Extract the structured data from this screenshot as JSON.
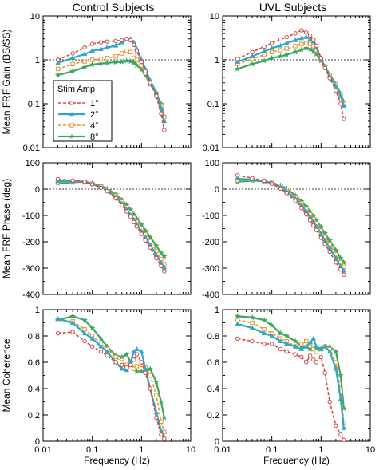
{
  "columns": [
    "Control Subjects",
    "UVL Subjects"
  ],
  "legend": {
    "title": "Stim Amp",
    "entries": [
      "1°",
      "2°",
      "4°",
      "8°"
    ]
  },
  "series_styles": [
    {
      "color": "#d24a43",
      "dash": "dashed",
      "marker": "circle"
    },
    {
      "color": "#2fa8c8",
      "dash": "solid",
      "marker": "triangle"
    },
    {
      "color": "#e8962e",
      "dash": "dashed",
      "marker": "square"
    },
    {
      "color": "#3aa860",
      "dash": "solid",
      "marker": "star"
    }
  ],
  "chart_data": [
    {
      "type": "line",
      "panel": "gain-control",
      "title": "Control Subjects",
      "xlabel": "",
      "ylabel": "Mean FRF Gain (BS/SS)",
      "xscale": "log",
      "yscale": "log",
      "xlim": [
        0.01,
        10
      ],
      "ylim": [
        0.01,
        10
      ],
      "xticks": [
        0.01,
        0.1,
        1,
        10
      ],
      "xtick_labels": [
        "",
        "",
        "",
        ""
      ],
      "yticks": [
        0.01,
        0.1,
        1,
        10
      ],
      "ytick_labels": [
        "0.01",
        "0.1",
        "1",
        "10"
      ],
      "reference_line": 1,
      "x": [
        0.02,
        0.04,
        0.07,
        0.1,
        0.15,
        0.2,
        0.3,
        0.4,
        0.5,
        0.6,
        0.7,
        0.8,
        1.0,
        1.2,
        1.5,
        2.0,
        2.5,
        2.9
      ],
      "series": [
        {
          "name": "1°",
          "values": [
            1.0,
            1.4,
            1.9,
            2.3,
            2.5,
            2.6,
            2.7,
            2.8,
            3.0,
            2.8,
            2.2,
            1.6,
            0.9,
            0.55,
            0.3,
            0.15,
            0.06,
            0.025
          ]
        },
        {
          "name": "2°",
          "values": [
            0.85,
            1.1,
            1.35,
            1.6,
            1.75,
            1.9,
            2.1,
            2.5,
            2.9,
            3.0,
            2.5,
            1.8,
            1.0,
            0.62,
            0.34,
            0.18,
            0.08,
            0.04
          ]
        },
        {
          "name": "4°",
          "values": [
            0.62,
            0.8,
            0.92,
            1.0,
            1.05,
            1.1,
            1.2,
            1.4,
            1.6,
            1.5,
            1.3,
            1.0,
            0.75,
            0.5,
            0.3,
            0.17,
            0.09,
            0.05
          ]
        },
        {
          "name": "8°",
          "values": [
            0.45,
            0.55,
            0.68,
            0.78,
            0.82,
            0.85,
            0.88,
            0.9,
            0.95,
            0.92,
            0.85,
            0.75,
            0.6,
            0.45,
            0.28,
            0.17,
            0.1,
            0.05
          ]
        }
      ]
    },
    {
      "type": "line",
      "panel": "gain-uvl",
      "title": "UVL Subjects",
      "xlabel": "",
      "ylabel": "",
      "xscale": "log",
      "yscale": "log",
      "xlim": [
        0.01,
        10
      ],
      "ylim": [
        0.01,
        10
      ],
      "xticks": [
        0.01,
        0.1,
        1,
        10
      ],
      "xtick_labels": [
        "",
        "",
        "",
        ""
      ],
      "yticks": [
        0.01,
        0.1,
        1,
        10
      ],
      "ytick_labels": [
        "0.01",
        "0.1",
        "1",
        "10"
      ],
      "reference_line": 1,
      "x": [
        0.02,
        0.04,
        0.07,
        0.1,
        0.15,
        0.2,
        0.3,
        0.4,
        0.5,
        0.6,
        0.7,
        0.8,
        1.0,
        1.2,
        1.5,
        2.0,
        2.5,
        2.9
      ],
      "series": [
        {
          "name": "1°",
          "values": [
            1.05,
            1.5,
            2.0,
            2.4,
            2.9,
            3.3,
            4.0,
            4.7,
            4.2,
            3.6,
            2.9,
            2.1,
            1.1,
            0.65,
            0.38,
            0.2,
            0.1,
            0.045
          ]
        },
        {
          "name": "2°",
          "values": [
            0.9,
            1.2,
            1.55,
            1.85,
            2.1,
            2.4,
            2.8,
            3.1,
            3.3,
            3.0,
            2.6,
            1.9,
            1.05,
            0.68,
            0.42,
            0.25,
            0.15,
            0.09
          ]
        },
        {
          "name": "4°",
          "values": [
            0.8,
            1.05,
            1.3,
            1.5,
            1.65,
            1.8,
            2.05,
            2.3,
            2.4,
            2.3,
            2.05,
            1.65,
            1.0,
            0.7,
            0.45,
            0.27,
            0.16,
            0.1
          ]
        },
        {
          "name": "8°",
          "values": [
            0.62,
            0.8,
            0.95,
            1.1,
            1.2,
            1.3,
            1.5,
            1.7,
            1.85,
            1.75,
            1.55,
            1.35,
            0.95,
            0.7,
            0.46,
            0.28,
            0.17,
            0.11
          ]
        }
      ]
    },
    {
      "type": "line",
      "panel": "phase-control",
      "xlabel": "",
      "ylabel": "Mean FRF Phase (deg)",
      "xscale": "log",
      "yscale": "linear",
      "xlim": [
        0.01,
        10
      ],
      "ylim": [
        -400,
        100
      ],
      "xticks": [
        0.01,
        0.1,
        1,
        10
      ],
      "xtick_labels": [
        "",
        "",
        "",
        ""
      ],
      "yticks": [
        -400,
        -300,
        -200,
        -100,
        0,
        100
      ],
      "ytick_labels": [
        "-400",
        "-300",
        "-200",
        "-100",
        "0",
        "100"
      ],
      "reference_line": 0,
      "x": [
        0.02,
        0.04,
        0.07,
        0.1,
        0.15,
        0.2,
        0.3,
        0.4,
        0.5,
        0.6,
        0.7,
        0.8,
        1.0,
        1.2,
        1.5,
        2.0,
        2.5,
        2.9
      ],
      "series": [
        {
          "name": "1°",
          "values": [
            38,
            33,
            28,
            18,
            5,
            -8,
            -35,
            -62,
            -85,
            -105,
            -125,
            -142,
            -170,
            -195,
            -222,
            -262,
            -292,
            -312
          ]
        },
        {
          "name": "2°",
          "values": [
            30,
            30,
            28,
            20,
            8,
            -5,
            -30,
            -55,
            -78,
            -98,
            -116,
            -133,
            -160,
            -185,
            -212,
            -250,
            -280,
            -298
          ]
        },
        {
          "name": "4°",
          "values": [
            26,
            28,
            26,
            20,
            10,
            -2,
            -25,
            -48,
            -70,
            -90,
            -108,
            -125,
            -150,
            -172,
            -198,
            -235,
            -265,
            -285
          ]
        },
        {
          "name": "8°",
          "values": [
            22,
            26,
            28,
            22,
            12,
            2,
            -20,
            -40,
            -60,
            -78,
            -96,
            -112,
            -135,
            -158,
            -182,
            -215,
            -242,
            -255
          ]
        }
      ]
    },
    {
      "type": "line",
      "panel": "phase-uvl",
      "xlabel": "",
      "ylabel": "",
      "xscale": "log",
      "yscale": "linear",
      "xlim": [
        0.01,
        10
      ],
      "ylim": [
        -400,
        100
      ],
      "xticks": [
        0.01,
        0.1,
        1,
        10
      ],
      "xtick_labels": [
        "",
        "",
        "",
        ""
      ],
      "yticks": [
        -400,
        -300,
        -200,
        -100,
        0,
        100
      ],
      "ytick_labels": [
        "-400",
        "-300",
        "-200",
        "-100",
        "0",
        "100"
      ],
      "reference_line": 0,
      "x": [
        0.02,
        0.04,
        0.07,
        0.1,
        0.15,
        0.2,
        0.3,
        0.4,
        0.5,
        0.6,
        0.7,
        0.8,
        1.0,
        1.2,
        1.5,
        2.0,
        2.5,
        2.9
      ],
      "series": [
        {
          "name": "1°",
          "values": [
            52,
            42,
            32,
            20,
            2,
            -15,
            -45,
            -72,
            -96,
            -118,
            -138,
            -155,
            -185,
            -208,
            -238,
            -278,
            -305,
            -325
          ]
        },
        {
          "name": "2°",
          "values": [
            40,
            36,
            30,
            22,
            8,
            -8,
            -36,
            -62,
            -85,
            -106,
            -125,
            -142,
            -170,
            -195,
            -224,
            -262,
            -292,
            -310
          ]
        },
        {
          "name": "4°",
          "values": [
            34,
            34,
            30,
            24,
            12,
            -3,
            -30,
            -54,
            -76,
            -96,
            -114,
            -130,
            -158,
            -182,
            -210,
            -248,
            -278,
            -295
          ]
        },
        {
          "name": "8°",
          "values": [
            28,
            32,
            30,
            24,
            14,
            2,
            -24,
            -46,
            -66,
            -85,
            -102,
            -118,
            -144,
            -168,
            -195,
            -232,
            -262,
            -278
          ]
        }
      ]
    },
    {
      "type": "line",
      "panel": "coherence-control",
      "xlabel": "Frequency (Hz)",
      "ylabel": "Mean Coherence",
      "xscale": "log",
      "yscale": "linear",
      "xlim": [
        0.01,
        10
      ],
      "ylim": [
        0,
        1
      ],
      "xticks": [
        0.01,
        0.1,
        1,
        10
      ],
      "xtick_labels": [
        "0.01",
        "0.1",
        "1",
        "10"
      ],
      "yticks": [
        0,
        0.2,
        0.4,
        0.6,
        0.8,
        1
      ],
      "ytick_labels": [
        "0",
        "0.2",
        "0.4",
        "0.6",
        "0.8",
        "1"
      ],
      "x": [
        0.02,
        0.04,
        0.07,
        0.1,
        0.15,
        0.2,
        0.3,
        0.4,
        0.5,
        0.6,
        0.7,
        0.8,
        1.0,
        1.2,
        1.5,
        2.0,
        2.5,
        2.9
      ],
      "series": [
        {
          "name": "1°",
          "values": [
            0.82,
            0.83,
            0.76,
            0.72,
            0.68,
            0.65,
            0.6,
            0.58,
            0.56,
            0.58,
            0.62,
            0.66,
            0.6,
            0.52,
            0.4,
            0.18,
            0.05,
            0.02
          ]
        },
        {
          "name": "2°",
          "values": [
            0.93,
            0.9,
            0.82,
            0.78,
            0.72,
            0.68,
            0.6,
            0.55,
            0.54,
            0.6,
            0.68,
            0.7,
            0.68,
            0.55,
            0.4,
            0.22,
            0.08,
            0.03
          ]
        },
        {
          "name": "4°",
          "values": [
            0.92,
            0.91,
            0.85,
            0.8,
            0.74,
            0.7,
            0.64,
            0.6,
            0.58,
            0.56,
            0.55,
            0.57,
            0.58,
            0.56,
            0.5,
            0.35,
            0.15,
            0.07
          ]
        },
        {
          "name": "8°",
          "values": [
            0.92,
            0.95,
            0.92,
            0.86,
            0.78,
            0.72,
            0.65,
            0.64,
            0.66,
            0.6,
            0.55,
            0.53,
            0.53,
            0.52,
            0.55,
            0.45,
            0.3,
            0.18
          ]
        }
      ]
    },
    {
      "type": "line",
      "panel": "coherence-uvl",
      "xlabel": "Frequency (Hz)",
      "ylabel": "",
      "xscale": "log",
      "yscale": "linear",
      "xlim": [
        0.01,
        10
      ],
      "ylim": [
        0,
        1
      ],
      "xticks": [
        0.01,
        0.1,
        1,
        10
      ],
      "xtick_labels": [
        "0.01",
        "0.1",
        "1",
        "10"
      ],
      "yticks": [
        0,
        0.2,
        0.4,
        0.6,
        0.8,
        1
      ],
      "ytick_labels": [
        "0",
        "0.2",
        "0.4",
        "0.6",
        "0.8",
        "1"
      ],
      "x": [
        0.02,
        0.04,
        0.07,
        0.1,
        0.15,
        0.2,
        0.3,
        0.4,
        0.5,
        0.6,
        0.7,
        0.8,
        1.0,
        1.2,
        1.5,
        2.0,
        2.5,
        2.9
      ],
      "series": [
        {
          "name": "1°",
          "values": [
            0.78,
            0.76,
            0.74,
            0.74,
            0.7,
            0.68,
            0.66,
            0.64,
            0.6,
            0.65,
            0.62,
            0.6,
            0.64,
            0.52,
            0.3,
            0.12,
            0.05,
            0.01
          ]
        },
        {
          "name": "2°",
          "values": [
            0.89,
            0.86,
            0.82,
            0.8,
            0.76,
            0.74,
            0.72,
            0.7,
            0.72,
            0.75,
            0.78,
            0.72,
            0.7,
            0.72,
            0.68,
            0.55,
            0.32,
            0.1
          ]
        },
        {
          "name": "4°",
          "values": [
            0.92,
            0.9,
            0.85,
            0.82,
            0.78,
            0.76,
            0.72,
            0.74,
            0.76,
            0.74,
            0.7,
            0.68,
            0.7,
            0.72,
            0.7,
            0.6,
            0.38,
            0.14
          ]
        },
        {
          "name": "8°",
          "values": [
            0.95,
            0.94,
            0.92,
            0.88,
            0.82,
            0.8,
            0.76,
            0.72,
            0.72,
            0.7,
            0.7,
            0.7,
            0.7,
            0.72,
            0.72,
            0.68,
            0.5,
            0.25
          ]
        }
      ]
    }
  ]
}
